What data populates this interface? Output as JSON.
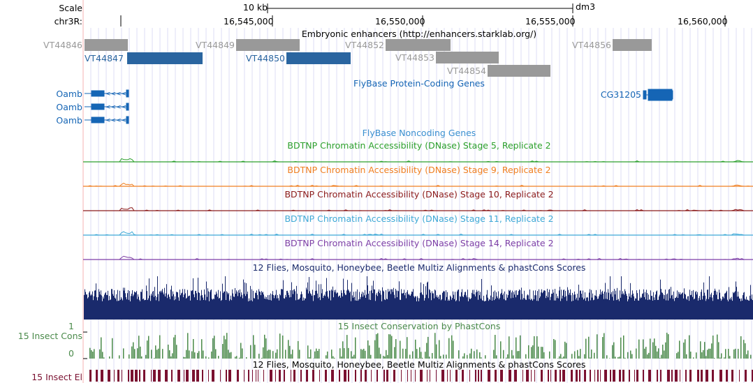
{
  "ruler": {
    "scale_label": "Scale",
    "chrom_label": "chr3R:",
    "scale_bar_text": "10 kb",
    "assembly": "dm3",
    "positions": [
      "16,545,000",
      "16,550,000",
      "16,555,000",
      "16,560,000"
    ]
  },
  "enhancers": {
    "title": "Embryonic enhancers (http://enhancers.starklab.org/)",
    "items": [
      {
        "label": "VT44846",
        "color": "gray"
      },
      {
        "label": "VT44847",
        "color": "blue"
      },
      {
        "label": "VT44849",
        "color": "gray"
      },
      {
        "label": "VT44850",
        "color": "blue"
      },
      {
        "label": "VT44852",
        "color": "gray"
      },
      {
        "label": "VT44853",
        "color": "gray"
      },
      {
        "label": "VT44854",
        "color": "gray"
      },
      {
        "label": "VT44856",
        "color": "gray"
      }
    ]
  },
  "protein_genes": {
    "title": "FlyBase Protein-Coding Genes",
    "genes": [
      "Oamb",
      "Oamb",
      "Oamb",
      "CG31205"
    ]
  },
  "noncoding": {
    "title": "FlyBase Noncoding Genes"
  },
  "dnase_tracks": [
    {
      "title": "BDTNP Chromatin Accessibility (DNase) Stage 5, Replicate 2",
      "color": "#2ca02c"
    },
    {
      "title": "BDTNP Chromatin Accessibility (DNase) Stage 9, Replicate 2",
      "color": "#f07f20"
    },
    {
      "title": "BDTNP Chromatin Accessibility (DNase) Stage 10, Replicate 2",
      "color": "#8b1a1a"
    },
    {
      "title": "BDTNP Chromatin Accessibility (DNase) Stage 11, Replicate 2",
      "color": "#3fa9d6"
    },
    {
      "title": "BDTNP Chromatin Accessibility (DNase) Stage 14, Replicate 2",
      "color": "#7d3fa6"
    }
  ],
  "multiz": {
    "title": "12 Flies, Mosquito, Honeybee, Beetle Multiz Alignments & phastCons Scores"
  },
  "insect_cons": {
    "label": "15 Insect Cons",
    "title": "15 Insect Conservation by PhastCons",
    "axis_max": "1",
    "axis_min": "0"
  },
  "insect_el": {
    "label": "15 Insect El",
    "title": "12 Flies, Mosquito, Honeybee, Beetle Multiz Alignments & phastCons Scores"
  },
  "colors": {
    "gene_blue": "#1565b5",
    "enhancer_gray": "#999999",
    "enhancer_blue": "#2a65a0",
    "multiz_navy": "#1a2a6c",
    "cons_green": "#4a8a4a",
    "el_maroon": "#7a1030",
    "guide_line": "#c8c8f0",
    "left_edge": "#f4b0b0"
  }
}
